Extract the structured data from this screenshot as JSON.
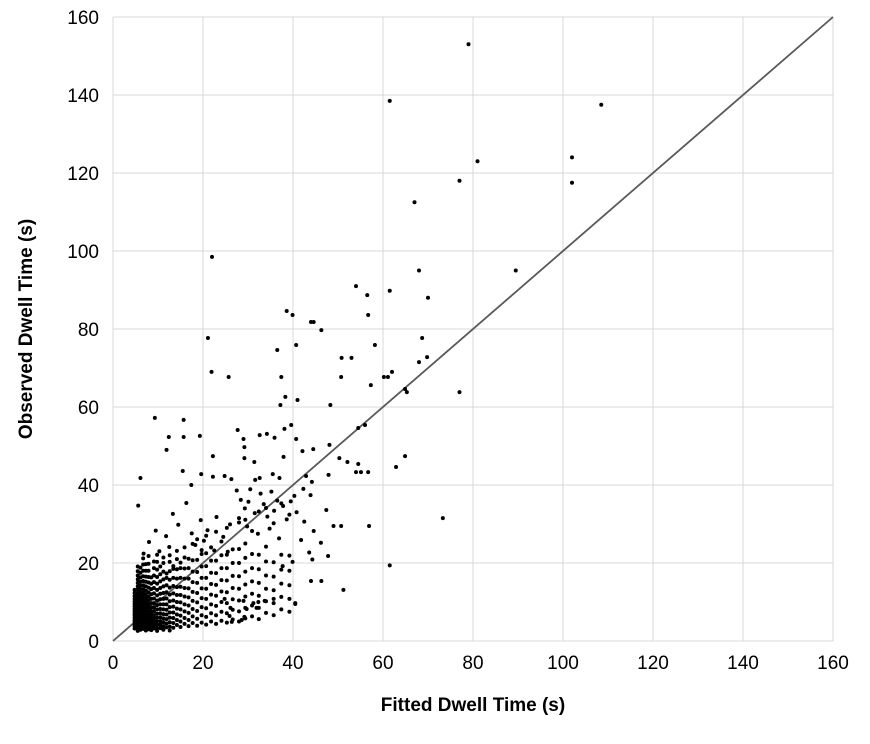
{
  "chart_data": {
    "type": "scatter",
    "title": "",
    "xlabel": "Fitted Dwell Time (s)",
    "ylabel": "Observed Dwell Time (s)",
    "xlim": [
      0,
      160
    ],
    "ylim": [
      0,
      160
    ],
    "xticks": [
      0,
      20,
      40,
      60,
      80,
      100,
      120,
      140,
      160
    ],
    "yticks": [
      0,
      20,
      40,
      60,
      80,
      100,
      120,
      140,
      160
    ],
    "grid": true,
    "legend_position": "none",
    "grid_color": "#d9d9d9",
    "tick_label_color": "#000000",
    "marker": {
      "shape": "circle",
      "radius": 2,
      "color": "#000000"
    },
    "identity_line": {
      "from": [
        0,
        0
      ],
      "to": [
        160,
        160
      ],
      "color": "#595959",
      "width": 1.8
    },
    "points": [
      [
        79,
        153
      ],
      [
        61.5,
        138.5
      ],
      [
        108.5,
        137.5
      ],
      [
        102,
        124
      ],
      [
        81,
        123
      ],
      [
        102,
        117.5
      ],
      [
        77,
        118
      ],
      [
        67,
        112.5
      ],
      [
        89.5,
        95
      ],
      [
        22,
        98.5
      ],
      [
        68,
        95
      ],
      [
        54,
        91
      ],
      [
        61.5,
        89.8
      ],
      [
        56.5,
        88.7
      ],
      [
        70,
        88
      ],
      [
        38.6,
        84.6
      ],
      [
        39.9,
        83.6
      ],
      [
        56.7,
        83.6
      ],
      [
        44,
        81.8
      ],
      [
        44.6,
        81.8
      ],
      [
        46.3,
        79.7
      ],
      [
        21.1,
        77.7
      ],
      [
        40.7,
        75.9
      ],
      [
        36.5,
        74.6
      ],
      [
        58.2,
        75.9
      ],
      [
        68.7,
        77.7
      ],
      [
        50.8,
        72.6
      ],
      [
        53,
        72.6
      ],
      [
        69.8,
        72.8
      ],
      [
        68,
        71.5
      ],
      [
        21.9,
        69
      ],
      [
        25.7,
        67.7
      ],
      [
        37.4,
        67.7
      ],
      [
        50.7,
        67.7
      ],
      [
        60.2,
        67.7
      ],
      [
        61.1,
        67.7
      ],
      [
        62,
        69
      ],
      [
        57.3,
        65.6
      ],
      [
        64.9,
        64.6
      ],
      [
        65.3,
        63.8
      ],
      [
        77,
        63.8
      ],
      [
        38.3,
        62.6
      ],
      [
        41,
        61.8
      ],
      [
        37.2,
        60.5
      ],
      [
        48.3,
        60.5
      ],
      [
        9.3,
        57.2
      ],
      [
        15.7,
        56.7
      ],
      [
        27.7,
        54.1
      ],
      [
        39.6,
        55.4
      ],
      [
        54.5,
        54.6
      ],
      [
        56,
        55.4
      ],
      [
        12.4,
        52.3
      ],
      [
        15.7,
        52.3
      ],
      [
        19.3,
        52.6
      ],
      [
        29,
        51.8
      ],
      [
        32.6,
        52.8
      ],
      [
        34.2,
        53.1
      ],
      [
        35.9,
        52.1
      ],
      [
        38.1,
        54.4
      ],
      [
        40.7,
        51.8
      ],
      [
        11.9,
        49
      ],
      [
        29.2,
        49.7
      ],
      [
        29.2,
        46.9
      ],
      [
        22.2,
        47.4
      ],
      [
        31.4,
        45.9
      ],
      [
        37.9,
        47.2
      ],
      [
        42.1,
        48.7
      ],
      [
        44.5,
        49.2
      ],
      [
        48.1,
        50.3
      ],
      [
        50.3,
        46.9
      ],
      [
        52.1,
        45.9
      ],
      [
        64.9,
        47.4
      ],
      [
        62.9,
        44.6
      ],
      [
        54.5,
        45.4
      ],
      [
        54,
        43.3
      ],
      [
        55.1,
        43.3
      ],
      [
        56.7,
        43.3
      ],
      [
        15.5,
        43.6
      ],
      [
        19.6,
        42.8
      ],
      [
        6.1,
        41.8
      ],
      [
        17.4,
        40
      ],
      [
        22.2,
        42.1
      ],
      [
        24.8,
        42.3
      ],
      [
        26.3,
        41.5
      ],
      [
        31.6,
        41.3
      ],
      [
        32.6,
        41.8
      ],
      [
        35.5,
        42.8
      ],
      [
        37,
        41.8
      ],
      [
        42.9,
        42.3
      ],
      [
        44.2,
        40.8
      ],
      [
        47.9,
        42.6
      ],
      [
        43.9,
        37.4
      ],
      [
        42.3,
        39
      ],
      [
        40.3,
        37.2
      ],
      [
        47.4,
        33.6
      ],
      [
        73.3,
        31.5
      ],
      [
        56.9,
        29.5
      ],
      [
        49,
        29.5
      ],
      [
        50.7,
        29.5
      ],
      [
        61.5,
        19.4
      ],
      [
        51.2,
        13.1
      ],
      [
        44,
        15.4
      ],
      [
        46.3,
        15.4
      ],
      [
        40.5,
        9.7
      ],
      [
        37.7,
        19.2
      ],
      [
        40.5,
        9.5
      ],
      [
        5.6,
        34.7
      ],
      [
        13.3,
        32.6
      ],
      [
        16.3,
        35.4
      ],
      [
        9.5,
        28.3
      ],
      [
        11.8,
        26.9
      ],
      [
        14.5,
        29.8
      ],
      [
        17.5,
        27.6
      ],
      [
        19.5,
        31
      ],
      [
        21,
        28.4
      ],
      [
        23,
        31.8
      ],
      [
        24.5,
        26.7
      ],
      [
        26,
        29.9
      ],
      [
        8,
        25.4
      ],
      [
        12.5,
        24.1
      ],
      [
        18.3,
        24.6
      ],
      [
        20.2,
        25.7
      ],
      [
        22.5,
        23.2
      ],
      [
        25.5,
        22.9
      ],
      [
        10.3,
        23
      ],
      [
        6.8,
        22.4
      ],
      [
        27.5,
        38.6
      ],
      [
        28.4,
        36.2
      ],
      [
        29.3,
        34
      ],
      [
        28,
        31.5
      ],
      [
        30.5,
        38.9
      ],
      [
        30.1,
        35.7
      ],
      [
        31.5,
        32.8
      ],
      [
        29.8,
        29.4
      ],
      [
        32.8,
        37.8
      ],
      [
        33.5,
        35.1
      ],
      [
        34.3,
        31.9
      ],
      [
        32.2,
        27.5
      ],
      [
        35.2,
        38.3
      ],
      [
        36.5,
        36
      ],
      [
        35.8,
        33.4
      ],
      [
        34.8,
        28.8
      ],
      [
        37.8,
        34.6
      ],
      [
        38.6,
        31.2
      ],
      [
        36.9,
        26.3
      ],
      [
        39.5,
        35.8
      ],
      [
        40.8,
        33
      ],
      [
        42.5,
        30.6
      ],
      [
        44.6,
        28.2
      ],
      [
        41.8,
        25.9
      ],
      [
        43.6,
        22.7
      ],
      [
        46.2,
        25.2
      ],
      [
        44.3,
        20.9
      ],
      [
        39.9,
        20.3
      ],
      [
        47.8,
        21.8
      ],
      [
        24.8,
        10.8
      ],
      [
        29,
        10.3
      ],
      [
        31.2,
        9.7
      ],
      [
        32.3,
        10
      ],
      [
        33.7,
        10.3
      ],
      [
        35.7,
        10.8
      ],
      [
        26.1,
        8.5
      ],
      [
        29.7,
        8.2
      ],
      [
        31.9,
        8.5
      ],
      [
        29.2,
        6.2
      ],
      [
        25.9,
        6.4
      ],
      [
        26.4,
        4.9
      ],
      [
        28.6,
        5.4
      ]
    ],
    "cloud_columns": [
      {
        "x": 4.8,
        "ys": [
          3.2,
          3.8,
          4.3,
          4.9,
          5.4,
          6,
          6.6,
          7.1,
          7.7,
          8.3,
          8.9,
          9.5,
          10.1,
          10.8,
          11.5,
          12.3,
          13.1
        ]
      },
      {
        "x": 5.5,
        "ys": [
          2.6,
          3.1,
          3.6,
          4.1,
          4.6,
          5.1,
          5.7,
          6.2,
          6.8,
          7.3,
          7.9,
          8.5,
          9.1,
          9.7,
          10.3,
          11,
          11.7,
          12.4,
          13.2,
          14,
          14.9,
          15.8,
          16.8,
          17.9,
          19.1
        ]
      },
      {
        "x": 6.1,
        "ys": [
          2.9,
          3.4,
          4,
          4.5,
          5.1,
          5.6,
          6.2,
          6.9,
          7.5,
          8.1,
          8.8,
          9.4,
          10.1,
          10.9,
          11.6,
          12.4,
          13.3,
          14.2,
          15.2,
          16.3,
          17.5,
          18.8
        ]
      },
      {
        "x": 6.7,
        "ys": [
          3.1,
          3.7,
          4.4,
          5,
          5.6,
          6.3,
          7,
          7.7,
          8.4,
          9.1,
          9.9,
          10.7,
          11.5,
          12.4,
          13.3,
          14.3,
          15.4,
          16.6,
          18,
          19.6,
          21.2
        ]
      },
      {
        "x": 7.3,
        "ys": [
          2.7,
          3.3,
          4,
          4.7,
          5.4,
          6.1,
          6.8,
          7.6,
          8.4,
          9.2,
          10,
          10.9,
          11.9,
          12.9,
          14,
          15.2,
          16.5,
          18,
          19.7
        ]
      },
      {
        "x": 7.9,
        "ys": [
          3,
          3.7,
          4.4,
          5.2,
          6,
          6.8,
          7.6,
          8.5,
          9.4,
          10.4,
          11.4,
          12.5,
          13.7,
          15,
          16.4,
          18,
          19.8,
          21.8
        ]
      },
      {
        "x": 8.5,
        "ys": [
          2.8,
          3.5,
          4.3,
          5.1,
          5.9,
          6.8,
          7.7,
          8.7,
          9.7,
          10.8,
          12,
          13.3,
          14.7,
          16.3
        ]
      },
      {
        "x": 9.1,
        "ys": [
          3.2,
          4,
          4.8,
          5.7,
          6.6,
          7.6,
          8.6,
          9.7,
          10.9,
          12.2,
          13.6,
          15.1,
          16.8,
          18.7,
          20.4
        ]
      },
      {
        "x": 9.8,
        "ys": [
          2.6,
          3.4,
          4.2,
          5.1,
          6,
          7,
          8.1,
          9.2,
          10.4,
          11.7,
          13.1,
          14.7,
          16.4,
          18.3,
          20.3,
          22.1
        ]
      },
      {
        "x": 10.5,
        "ys": [
          3.3,
          4.2,
          5.1,
          6.1,
          7.1,
          8.2,
          9.4,
          10.7,
          12.1,
          13.6,
          15.3,
          17.1,
          19.1
        ]
      },
      {
        "x": 11.2,
        "ys": [
          2.9,
          3.8,
          4.8,
          5.8,
          6.9,
          8.1,
          9.4,
          10.8,
          12.3,
          14,
          15.8,
          17.8,
          20,
          21.4
        ]
      },
      {
        "x": 11.9,
        "ys": [
          3.5,
          4.5,
          5.6,
          6.8,
          8,
          9.4,
          10.9,
          12.5,
          14.3,
          16.2,
          17.3
        ]
      },
      {
        "x": 12.6,
        "ys": [
          2.7,
          3.7,
          4.8,
          6,
          7.3,
          8.7,
          10.2,
          11.9,
          13.7,
          15.7,
          17.9,
          20.3,
          22
        ]
      },
      {
        "x": 13.4,
        "ys": [
          3.4,
          4.6,
          5.9,
          7.3,
          8.8,
          10.4,
          12.2,
          14.1,
          16.2,
          18.5,
          19.2
        ]
      },
      {
        "x": 14.2,
        "ys": [
          4.1,
          5.4,
          6.8,
          8.3,
          10,
          11.8,
          13.8,
          16,
          18.4,
          21,
          23.1
        ]
      },
      {
        "x": 15,
        "ys": [
          3.6,
          5,
          6.5,
          8.1,
          9.9,
          11.8,
          13.9,
          16.2,
          18.7,
          20.1
        ]
      },
      {
        "x": 15.9,
        "ys": [
          4.4,
          5.9,
          7.6,
          9.4,
          11.4,
          13.6,
          16,
          18.6,
          21.4,
          24
        ]
      },
      {
        "x": 16.8,
        "ys": [
          3.8,
          5.4,
          7.2,
          9.1,
          11.2,
          13.5,
          16,
          18.7,
          21.1
        ]
      },
      {
        "x": 17.7,
        "ys": [
          4.6,
          6.3,
          8.2,
          10.3,
          12.6,
          15.1,
          17.8,
          20.7,
          24.9
        ]
      },
      {
        "x": 18.7,
        "ys": [
          3.9,
          5.7,
          7.7,
          9.9,
          12.3,
          14.9,
          17.7,
          20.8,
          26.1
        ]
      },
      {
        "x": 19.7,
        "ys": [
          4.7,
          6.6,
          8.7,
          11,
          13.5,
          16.2,
          19.1,
          22.3,
          23.3
        ]
      },
      {
        "x": 20.7,
        "ys": [
          4.2,
          6.2,
          8.4,
          10.8,
          13.4,
          16.2,
          19.2,
          22.5,
          27
        ]
      },
      {
        "x": 21.8,
        "ys": [
          5,
          7.1,
          9.4,
          11.9,
          14.6,
          17.5,
          20.6,
          24
        ]
      },
      {
        "x": 22.9,
        "ys": [
          4.4,
          6.6,
          9,
          11.6,
          14.4,
          17.4,
          20.6,
          28
        ]
      },
      {
        "x": 24.1,
        "ys": [
          5.2,
          7.5,
          10,
          12.7,
          15.6,
          18.7,
          22,
          25.5
        ]
      },
      {
        "x": 25.3,
        "ys": [
          4.7,
          7.1,
          9.7,
          12.5,
          15.5,
          18.7,
          22.1,
          29
        ]
      },
      {
        "x": 26.6,
        "ys": [
          5.5,
          8,
          10.7,
          13.6,
          16.7,
          20,
          23.5
        ]
      },
      {
        "x": 28,
        "ys": [
          5,
          7.6,
          10.4,
          13.4,
          16.6,
          20,
          23.6,
          30.4
        ]
      },
      {
        "x": 29.4,
        "ys": [
          5.8,
          8.5,
          11.4,
          14.5,
          17.8,
          21.3,
          25,
          31.1
        ]
      },
      {
        "x": 30.9,
        "ys": [
          6.3,
          9.1,
          12.1,
          15.3,
          18.7,
          22.3,
          28.2
        ]
      },
      {
        "x": 32.4,
        "ys": [
          5.6,
          8.5,
          11.6,
          14.9,
          18.4,
          22.1,
          33.2
        ]
      },
      {
        "x": 34,
        "ys": [
          7.2,
          10.2,
          13.4,
          16.8,
          20.4,
          24.2,
          34.1
        ]
      },
      {
        "x": 35.7,
        "ys": [
          6.6,
          9.7,
          13,
          16.5,
          20.2,
          30.2
        ]
      },
      {
        "x": 37.4,
        "ys": [
          8.1,
          11.3,
          14.7,
          18.3,
          22.1,
          35.3
        ]
      },
      {
        "x": 39.2,
        "ys": [
          7.5,
          10.8,
          14.3,
          18,
          21.9,
          32.4
        ]
      }
    ]
  }
}
